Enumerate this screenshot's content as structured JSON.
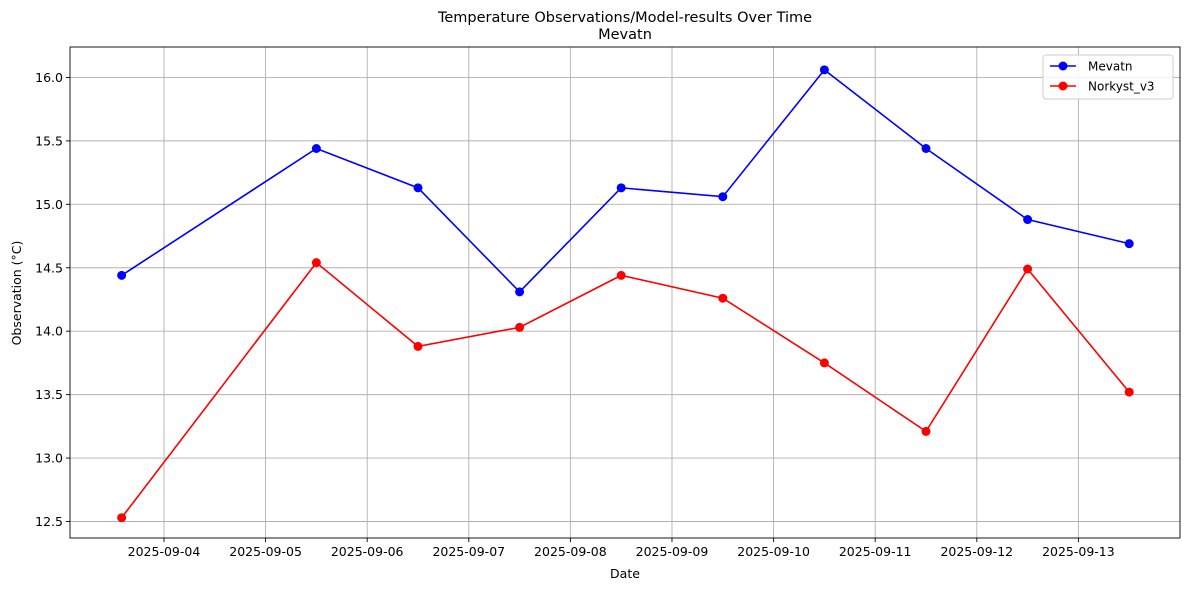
{
  "chart_data": {
    "type": "line",
    "title": "Temperature Observations/Model-results Over Time",
    "subtitle": "Mevatn",
    "xlabel": "Date",
    "ylabel": "Observation (°C)",
    "x": [
      "2025-09-03 14:00",
      "2025-09-05 12:00",
      "2025-09-06 12:00",
      "2025-09-07 12:00",
      "2025-09-08 12:00",
      "2025-09-09 12:00",
      "2025-09-10 12:00",
      "2025-09-11 12:00",
      "2025-09-12 12:00",
      "2025-09-13 12:00"
    ],
    "x_numeric": [
      0.5833,
      2.5,
      3.5,
      4.5,
      5.5,
      6.5,
      7.5,
      8.5,
      9.5,
      10.5
    ],
    "x_ticks": [
      1,
      2,
      3,
      4,
      5,
      6,
      7,
      8,
      9,
      10
    ],
    "x_tick_labels": [
      "2025-09-04",
      "2025-09-05",
      "2025-09-06",
      "2025-09-07",
      "2025-09-08",
      "2025-09-09",
      "2025-09-10",
      "2025-09-11",
      "2025-09-12",
      "2025-09-13"
    ],
    "xlim": [
      0.075,
      11.0
    ],
    "ylim": [
      12.37,
      16.24
    ],
    "y_ticks": [
      12.5,
      13.0,
      13.5,
      14.0,
      14.5,
      15.0,
      15.5,
      16.0
    ],
    "y_tick_labels": [
      "12.5",
      "13.0",
      "13.5",
      "14.0",
      "14.5",
      "15.0",
      "15.5",
      "16.0"
    ],
    "grid": true,
    "legend_position": "top-right",
    "series": [
      {
        "name": "Mevatn",
        "color": "#0000ff",
        "values": [
          14.44,
          15.44,
          15.13,
          14.31,
          15.13,
          15.06,
          16.06,
          15.44,
          14.88,
          14.69
        ]
      },
      {
        "name": "Norkyst_v3",
        "color": "#ff0000",
        "values": [
          12.53,
          14.54,
          13.88,
          14.03,
          14.44,
          14.26,
          13.75,
          13.21,
          14.49,
          13.52
        ]
      }
    ]
  }
}
